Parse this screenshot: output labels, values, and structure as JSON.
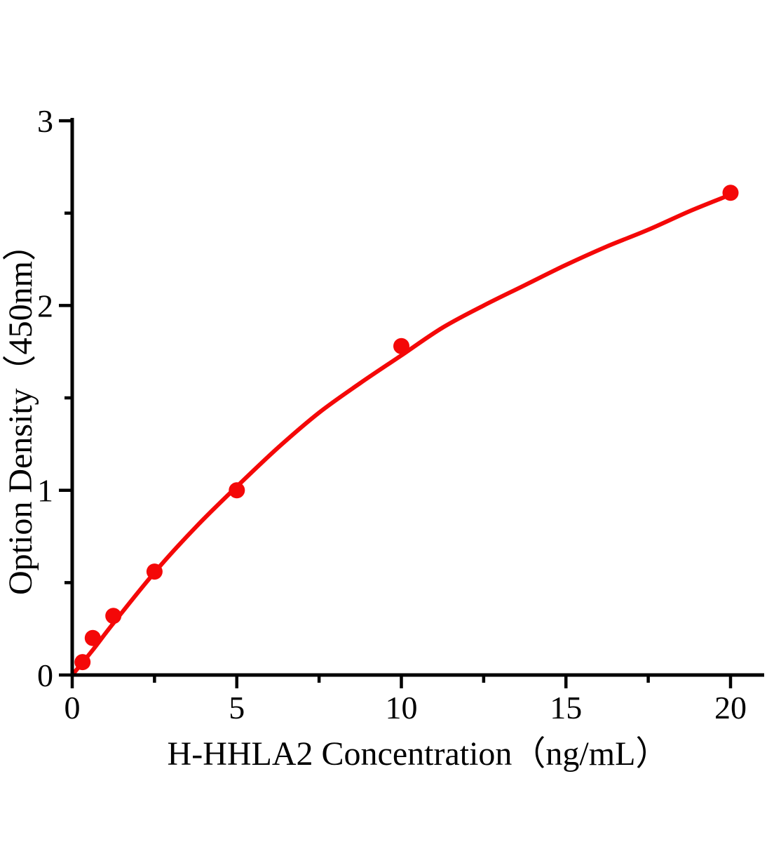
{
  "figure": {
    "background": "#ffffff"
  },
  "chart_data": {
    "type": "scatter",
    "title": "",
    "xlabel": "H-HHLA2 Concentration（ng/mL）",
    "ylabel": "Option Density（450nm）",
    "xlim": [
      0,
      21
    ],
    "ylim": [
      0,
      3
    ],
    "x_ticks_major": [
      0,
      5,
      10,
      15,
      20
    ],
    "x_ticks_minor": [
      2.5,
      7.5,
      12.5,
      17.5
    ],
    "y_ticks_major": [
      0,
      1,
      2,
      3
    ],
    "y_ticks_minor": [
      0.5,
      1.5,
      2.5
    ],
    "grid": false,
    "legend_position": "none",
    "colors": {
      "series": "#f40808",
      "axis": "#000000"
    },
    "series": [
      {
        "marker": "circle",
        "points": [
          [
            0.313,
            0.07
          ],
          [
            0.625,
            0.2
          ],
          [
            1.25,
            0.32
          ],
          [
            2.5,
            0.56
          ],
          [
            5,
            1.0
          ],
          [
            10,
            1.78
          ],
          [
            20,
            2.61
          ]
        ]
      }
    ],
    "fit_curve": [
      [
        0,
        0
      ],
      [
        0.6,
        0.13
      ],
      [
        1.25,
        0.28
      ],
      [
        2.5,
        0.555
      ],
      [
        3.75,
        0.8
      ],
      [
        5,
        1.02
      ],
      [
        6.25,
        1.23
      ],
      [
        7.5,
        1.42
      ],
      [
        8.75,
        1.58
      ],
      [
        10,
        1.73
      ],
      [
        11.25,
        1.88
      ],
      [
        12.5,
        2.0
      ],
      [
        13.75,
        2.11
      ],
      [
        15,
        2.22
      ],
      [
        16.25,
        2.32
      ],
      [
        17.5,
        2.41
      ],
      [
        18.75,
        2.51
      ],
      [
        20,
        2.6
      ]
    ]
  }
}
